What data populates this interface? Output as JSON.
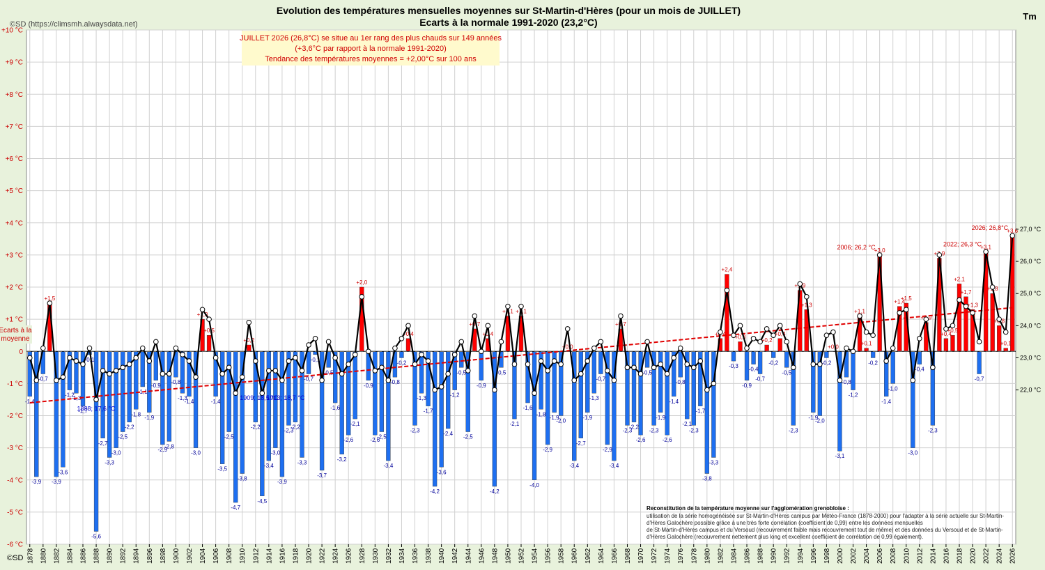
{
  "header": {
    "title_line1": "Evolution des températures mensuelles moyennes sur St-Martin-d'Hères (pour un mois de JUILLET)",
    "title_line2": "Ecarts à la normale 1991-2020 (23,2°C)",
    "copyright": "©SD (https://climsmh.alwaysdata.net)",
    "right_axis_title": "Tm",
    "bottom_copyright": "©SD"
  },
  "info_box": {
    "line1": "JUILLET 2026 (26,8°C) se situe au 1er rang des plus chauds sur 149 années",
    "line2": "(+3,6°C par rapport à la normale 1991-2020)",
    "line3": "Tendance des températures moyennes = +2,00°C sur 100 ans",
    "background": "#fffacd"
  },
  "left_axis_note": [
    "Ecarts à la",
    "moyenne"
  ],
  "note": {
    "title": "Reconstitution de la température moyenne sur l'agglomération grenobloise :",
    "lines": [
      "utilisation de la série homogénéisée sur St-Martin-d'Hères campus par Météo-France (1878-2000) pour l'adapter à la série actuelle sur St-Martin-",
      "d'Hères Galochère  possible grâce à une très forte corrélation (coefficient de 0,99) entre les données mensuelles",
      "de St-Martin-d'Hères campus et du Versoud (recouvrement faible mais recouvrement tout de même) et des données du Versoud et de St-Martin-",
      "d'Hères Galochère (recouvrement nettement plus long et excellent coefficient de corrélation de 0,99 également)."
    ]
  },
  "annotations": [
    {
      "year": 1888,
      "text": "1888; 17,6 °C",
      "color": "#0000cc"
    },
    {
      "year": 1909,
      "text": "1909; 18,5 °C",
      "color": "#0000cc"
    },
    {
      "year": 1913,
      "text": "1913; 18,7 °C",
      "color": "#0000cc"
    },
    {
      "year": 2006,
      "text": "2006; 26,2 °C",
      "color": "#cc0000"
    },
    {
      "year": 2022,
      "text": "2022; 26,3 °C",
      "color": "#cc0000"
    },
    {
      "year": 2026,
      "text": "2026; 26,8°C",
      "color": "#cc0000"
    }
  ],
  "colors": {
    "positive_bar": "#ff0000",
    "negative_bar": "#1e6ff0",
    "line": "#000000",
    "trend": "#e00000",
    "normal_line": "#666666",
    "plot_bg": "#ffffff",
    "grid": "#d0d0d0"
  },
  "chart_data": {
    "type": "bar+line",
    "x_label_years": [
      1878,
      1880,
      1882,
      1884,
      1886,
      1888,
      1890,
      1892,
      1894,
      1896,
      1898,
      1900,
      1902,
      1904,
      1906,
      1908,
      1910,
      1912,
      1914,
      1916,
      1918,
      1920,
      1922,
      1924,
      1926,
      1928,
      1930,
      1932,
      1934,
      1936,
      1938,
      1940,
      1942,
      1944,
      1946,
      1948,
      1950,
      1952,
      1954,
      1956,
      1958,
      1960,
      1962,
      1964,
      1966,
      1968,
      1970,
      1972,
      1974,
      1976,
      1978,
      1980,
      1982,
      1984,
      1986,
      1988,
      1990,
      1992,
      1994,
      1996,
      1998,
      2000,
      2002,
      2004,
      2006,
      2008,
      2010,
      2012,
      2014,
      2016,
      2018,
      2020,
      2022,
      2024,
      2026
    ],
    "left_axis": {
      "min": -6,
      "max": 10,
      "step": 1,
      "labels": [
        "-6 °C",
        "-5 °C",
        "-4 °C",
        "-3 °C",
        "-2 °C",
        "-1 °C",
        "0",
        "+1 °C",
        "+2 °C",
        "+3 °C",
        "+4 °C",
        "+5 °C",
        "+6 °C",
        "+7 °C",
        "+8 °C",
        "+9 °C",
        "+10 °C"
      ]
    },
    "right_axis": {
      "min": 22.0,
      "max": 27.0,
      "step": 1,
      "labels": [
        "22,0 °C",
        "23,0 °C",
        "24,0 °C",
        "25,0 °C",
        "26,0 °C",
        "27,0 °C"
      ]
    },
    "normal_value": 23.2,
    "trend": {
      "start_year": 1878,
      "start_temp": 21.6,
      "end_year": 2026,
      "end_temp": 24.56
    },
    "years": [
      1878,
      1879,
      1880,
      1881,
      1882,
      1883,
      1884,
      1885,
      1886,
      1887,
      1888,
      1889,
      1890,
      1891,
      1892,
      1893,
      1894,
      1895,
      1896,
      1897,
      1898,
      1899,
      1900,
      1901,
      1902,
      1903,
      1904,
      1905,
      1906,
      1907,
      1908,
      1909,
      1910,
      1911,
      1912,
      1913,
      1914,
      1915,
      1916,
      1917,
      1918,
      1919,
      1920,
      1921,
      1922,
      1923,
      1924,
      1925,
      1926,
      1927,
      1928,
      1929,
      1930,
      1931,
      1932,
      1933,
      1934,
      1935,
      1936,
      1937,
      1938,
      1939,
      1940,
      1941,
      1942,
      1943,
      1944,
      1945,
      1946,
      1947,
      1948,
      1949,
      1950,
      1951,
      1952,
      1953,
      1954,
      1955,
      1956,
      1957,
      1958,
      1959,
      1960,
      1961,
      1962,
      1963,
      1964,
      1965,
      1966,
      1967,
      1968,
      1969,
      1970,
      1971,
      1972,
      1973,
      1974,
      1975,
      1976,
      1977,
      1978,
      1979,
      1980,
      1981,
      1982,
      1983,
      1984,
      1985,
      1986,
      1987,
      1988,
      1989,
      1990,
      1991,
      1992,
      1993,
      1994,
      1995,
      1996,
      1997,
      1998,
      1999,
      2000,
      2001,
      2002,
      2003,
      2004,
      2005,
      2006,
      2007,
      2008,
      2009,
      2010,
      2011,
      2012,
      2013,
      2014,
      2015,
      2016,
      2017,
      2018,
      2019,
      2020,
      2021,
      2022,
      2023,
      2024,
      2025,
      2026
    ],
    "anomalies": [
      -1.4,
      -3.9,
      -0.7,
      1.5,
      -3.9,
      -3.6,
      -1.2,
      -1.3,
      -1.7,
      -0.1,
      -5.6,
      -2.7,
      -3.3,
      -3.0,
      -2.5,
      -2.2,
      -1.8,
      -1.1,
      -1.9,
      -0.9,
      -2.9,
      -2.8,
      -0.8,
      -1.3,
      -1.4,
      -3.0,
      1.0,
      0.5,
      -1.4,
      -3.5,
      -2.5,
      -4.7,
      -3.8,
      0.2,
      -2.2,
      -4.5,
      -3.4,
      -3.0,
      -3.9,
      -2.3,
      -2.2,
      -3.3,
      -0.7,
      -0.1,
      -3.7,
      -0.5,
      -1.6,
      -3.2,
      -2.6,
      -2.1,
      2.0,
      -0.9,
      -2.6,
      -2.5,
      -3.4,
      -0.8,
      -0.2,
      0.4,
      -2.3,
      -1.3,
      -1.7,
      -4.2,
      -3.6,
      -2.4,
      -1.2,
      -0.5,
      -2.5,
      0.7,
      -0.9,
      0.4,
      -4.2,
      -0.5,
      1.1,
      -2.1,
      1.1,
      -1.6,
      -4.0,
      -1.8,
      -2.9,
      -1.9,
      -2.0,
      0.0,
      -3.4,
      -2.7,
      -1.9,
      -1.3,
      -0.7,
      -2.9,
      -3.4,
      0.7,
      -2.3,
      -2.2,
      -2.6,
      -0.5,
      -2.3,
      -1.9,
      -2.6,
      -1.4,
      -0.8,
      -2.1,
      -2.3,
      -1.7,
      -3.8,
      -3.3,
      0.4,
      2.4,
      -0.3,
      0.3,
      -0.9,
      -0.4,
      -0.7,
      0.2,
      -0.2,
      0.4,
      -0.5,
      -2.3,
      1.9,
      1.3,
      -1.9,
      -2.0,
      -0.2,
      0.0,
      -3.1,
      -0.8,
      -1.2,
      1.1,
      0.1,
      -0.2,
      3.0,
      -1.4,
      -1.0,
      1.4,
      1.5,
      -3.0,
      -0.4,
      0.9,
      -2.3,
      2.9,
      0.4,
      0.5,
      2.1,
      1.7,
      1.3,
      -0.7,
      3.1,
      1.8,
      0.8,
      0.1,
      3.6
    ],
    "temperatures": [
      23.0,
      22.3,
      23.3,
      24.7,
      22.3,
      22.4,
      23.0,
      22.9,
      22.8,
      23.3,
      21.7,
      22.6,
      22.5,
      22.6,
      22.7,
      22.8,
      23.0,
      23.3,
      22.9,
      23.5,
      22.5,
      22.5,
      23.3,
      23.1,
      22.9,
      22.4,
      24.5,
      24.2,
      23.0,
      22.5,
      22.7,
      21.9,
      22.4,
      24.1,
      22.9,
      21.9,
      22.6,
      22.6,
      22.3,
      22.9,
      23.0,
      22.6,
      23.4,
      23.6,
      22.3,
      23.5,
      23.0,
      22.5,
      22.8,
      23.1,
      24.9,
      23.2,
      22.6,
      22.7,
      22.3,
      23.3,
      23.6,
      24.0,
      22.8,
      23.1,
      22.9,
      22.0,
      22.1,
      22.5,
      23.1,
      23.5,
      22.6,
      24.3,
      23.2,
      24.0,
      22.0,
      23.5,
      24.6,
      22.8,
      24.6,
      22.8,
      21.9,
      22.9,
      22.6,
      22.9,
      22.8,
      23.9,
      22.3,
      22.5,
      22.9,
      23.3,
      23.5,
      22.6,
      22.3,
      24.3,
      22.7,
      22.7,
      22.5,
      23.5,
      22.7,
      22.8,
      22.5,
      23.0,
      23.3,
      22.8,
      22.7,
      22.9,
      22.0,
      22.2,
      23.8,
      25.1,
      23.7,
      24.0,
      23.3,
      23.6,
      23.5,
      23.9,
      23.7,
      24.0,
      23.5,
      22.7,
      25.3,
      24.9,
      22.8,
      22.8,
      23.7,
      23.8,
      22.3,
      23.3,
      23.2,
      24.3,
      23.8,
      23.7,
      26.2,
      22.9,
      23.3,
      24.4,
      24.5,
      22.3,
      23.6,
      24.2,
      22.7,
      26.2,
      23.9,
      24.0,
      24.8,
      24.6,
      24.4,
      23.5,
      26.3,
      25.2,
      24.2,
      23.8,
      26.8
    ],
    "bar_labels": [
      "-1,4",
      "-3,9",
      "-0,7",
      "+1,5",
      "-3,9",
      "-3,6",
      "-1,2",
      "-1,3",
      "-1,7",
      "-0,1",
      "-5,6",
      "-2,7",
      "-3,3",
      "-3,0",
      "-2,5",
      "-2,2",
      "-1,8",
      "-1,1",
      "-1,9",
      "-0,9",
      "-2,9",
      "-2,8",
      "-0,8",
      "-1,3",
      "-1,4",
      "-3,0",
      "+1,0",
      "+0,5",
      "-1,4",
      "-3,5",
      "-2,5",
      "-4,7",
      "-3,8",
      "+0,2",
      "-2,2",
      "-4,5",
      "-3,4",
      "-3,0",
      "-3,9",
      "-2,3",
      "-2,2",
      "-3,3",
      "-0,7",
      "-0,1",
      "-3,7",
      "-0,5",
      "-1,6",
      "-3,2",
      "-2,6",
      "-2,1",
      "+2,0",
      "-0,9",
      "-2,6",
      "-2,5",
      "-3,4",
      "-0,8",
      "-0,2",
      "+0,4",
      "-2,3",
      "-1,3",
      "-1,7",
      "-4,2",
      "-3,6",
      "-2,4",
      "-1,2",
      "-0,5",
      "-2,5",
      "+0,7",
      "-0,9",
      "+0,4",
      "-4,2",
      "-0,5",
      "+1,1",
      "-2,1",
      "+1,1",
      "-1,6",
      "-4,0",
      "-1,8",
      "-2,9",
      "-1,9",
      "-2,0",
      "+0,0",
      "-3,4",
      "-2,7",
      "-1,9",
      "-1,3",
      "-0,7",
      "-2,9",
      "-3,4",
      "+0,7",
      "-2,3",
      "-2,2",
      "-2,6",
      "-0,5",
      "-2,3",
      "-1,9",
      "-2,6",
      "-1,4",
      "-0,8",
      "-2,1",
      "-2,3",
      "-1,7",
      "-3,8",
      "-3,3",
      "+0,4",
      "+2,4",
      "-0,3",
      "+0,3",
      "-0,9",
      "-0,4",
      "-0,7",
      "+0,2",
      "-0,2",
      "+0,4",
      "-0,5",
      "-2,3",
      "+1,9",
      "+1,3",
      "-1,9",
      "-2,0",
      "-0,2",
      "+0,0",
      "-3,1",
      "-0,8",
      "-1,2",
      "+1,1",
      "+0,1",
      "-0,2",
      "+3,0",
      "-1,4",
      "-1,0",
      "+1,4",
      "+1,5",
      "-3,0",
      "-0,4",
      "+0,9",
      "-2,3",
      "+2,9",
      "+0,4",
      "+0,5",
      "+2,1",
      "+1,7",
      "+1,3",
      "-0,7",
      "+3,1",
      "+1,8",
      "+0,8",
      "+0,1",
      "+3,6"
    ]
  }
}
